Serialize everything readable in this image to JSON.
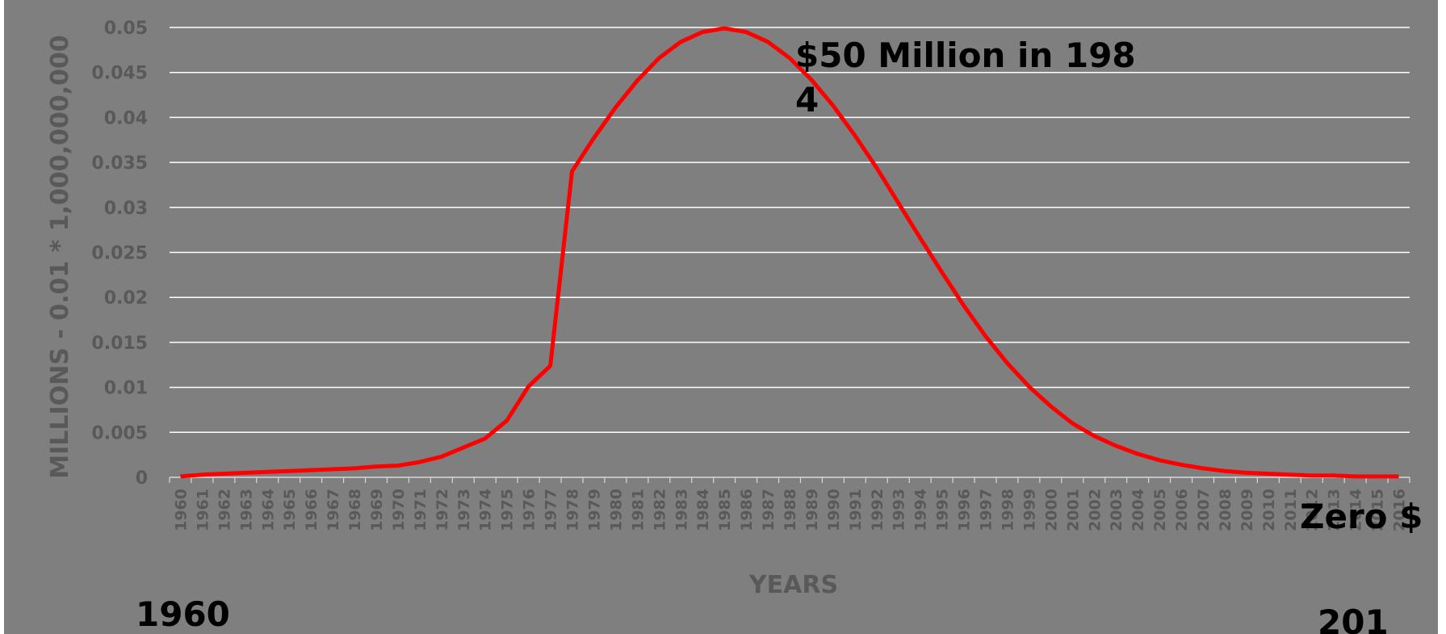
{
  "chart_data": {
    "type": "line",
    "title": "",
    "xlabel": "YEARS",
    "ylabel": "MILLIONS - 0.01 * 1,000,000,000",
    "ylim": [
      0,
      0.05
    ],
    "yticks": [
      "0",
      "0.005",
      "0.01",
      "0.015",
      "0.02",
      "0.025",
      "0.03",
      "0.035",
      "0.04",
      "0.045",
      "0.05"
    ],
    "grid": true,
    "legend": "none",
    "line_color": "#ff0000",
    "background_color": "#7f7f7f",
    "x": [
      1960,
      1961,
      1962,
      1963,
      1964,
      1965,
      1966,
      1967,
      1968,
      1969,
      1970,
      1971,
      1972,
      1973,
      1974,
      1975,
      1976,
      1977,
      1978,
      1979,
      1980,
      1981,
      1982,
      1983,
      1984,
      1985,
      1986,
      1987,
      1988,
      1989,
      1990,
      1991,
      1992,
      1993,
      1994,
      1995,
      1996,
      1997,
      1998,
      1999,
      2000,
      2001,
      2002,
      2003,
      2004,
      2005,
      2006,
      2007,
      2008,
      2009,
      2010,
      2011,
      2012,
      2013,
      2014,
      2015,
      2016
    ],
    "series": [
      {
        "values": [
          0.0001,
          0.0003,
          0.0004,
          0.0005,
          0.0006,
          0.0007,
          0.0008,
          0.0009,
          0.001,
          0.0012,
          0.0013,
          0.0017,
          0.0023,
          0.0033,
          0.0043,
          0.0063,
          0.0101,
          0.0124,
          0.034,
          0.0377,
          0.0411,
          0.0441,
          0.0466,
          0.0484,
          0.0495,
          0.0499,
          0.0495,
          0.0484,
          0.0466,
          0.0442,
          0.0413,
          0.038,
          0.0344,
          0.0305,
          0.0266,
          0.0228,
          0.0191,
          0.0157,
          0.0127,
          0.0101,
          0.0079,
          0.006,
          0.0046,
          0.0035,
          0.0026,
          0.0019,
          0.0014,
          0.001,
          0.0007,
          0.0005,
          0.0004,
          0.0003,
          0.0002,
          0.0002,
          0.0001,
          0.0001,
          0.0001
        ]
      }
    ],
    "annotations": [
      "$50 Million in 198",
      "4",
      "Zero $",
      "1960",
      "201"
    ]
  }
}
